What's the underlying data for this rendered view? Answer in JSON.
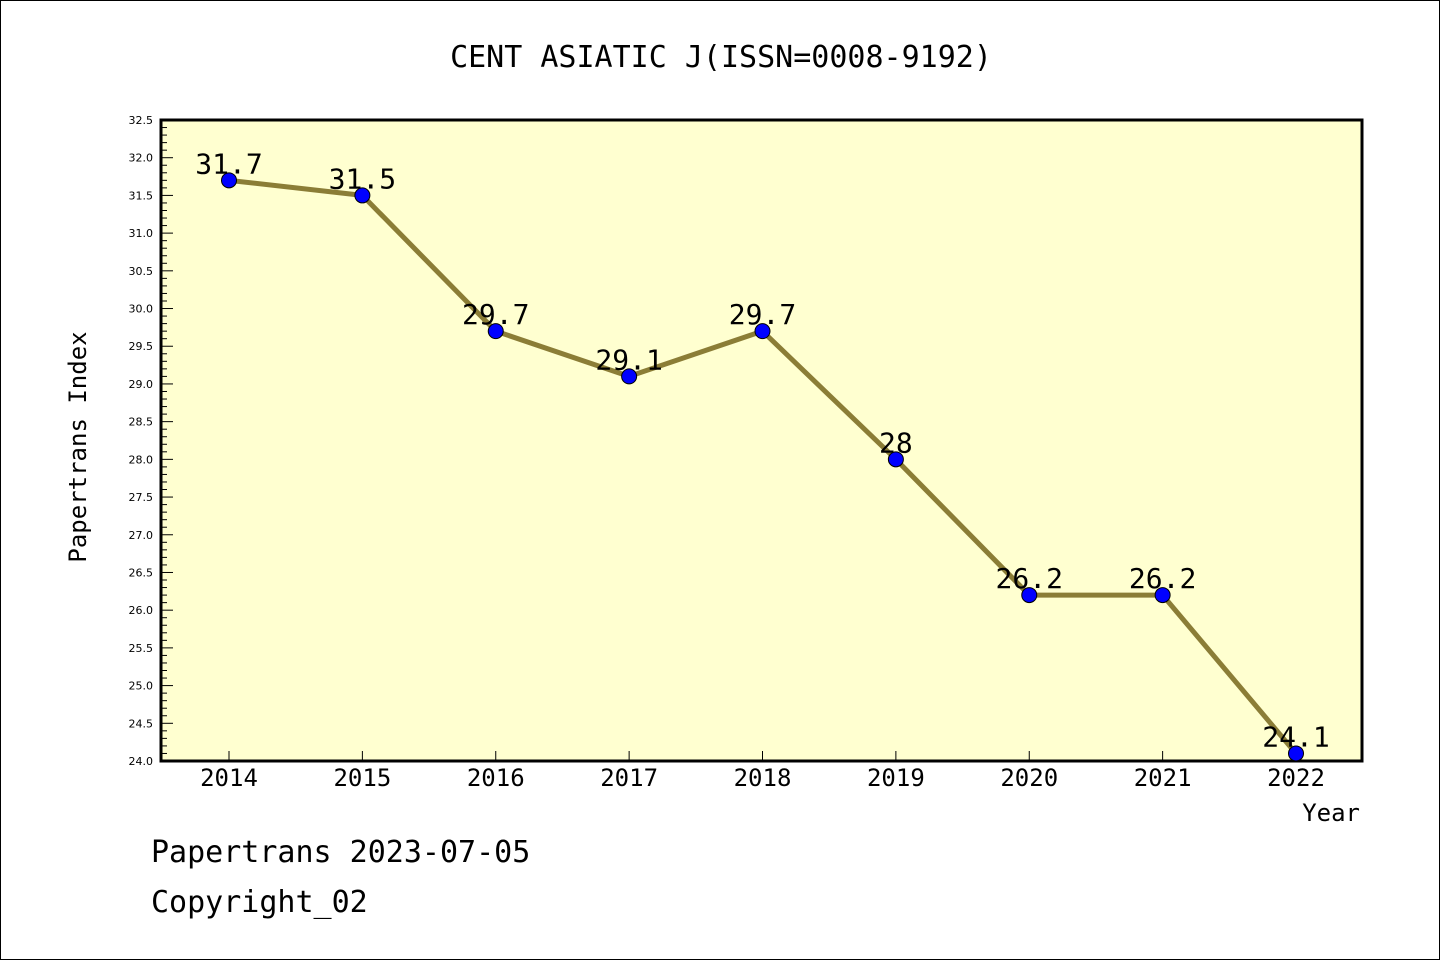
{
  "chart_data": {
    "type": "line",
    "title": "CENT ASIATIC J(ISSN=0008-9192)",
    "xlabel": "Year",
    "ylabel": "Papertrans Index",
    "categories": [
      "2014",
      "2015",
      "2016",
      "2017",
      "2018",
      "2019",
      "2020",
      "2021",
      "2022"
    ],
    "series": [
      {
        "values": [
          31.7,
          31.5,
          29.7,
          29.1,
          29.7,
          28,
          26.2,
          26.2,
          24.1
        ],
        "labels": [
          "31.7",
          "31.5",
          "29.7",
          "29.1",
          "29.7",
          "28",
          "26.2",
          "26.2",
          "24.1"
        ]
      }
    ],
    "ylim": [
      24.0,
      32.5
    ],
    "yticks": [
      "24.0",
      "24.5",
      "25.0",
      "25.5",
      "26.0",
      "26.5",
      "27.0",
      "27.5",
      "28.0",
      "28.5",
      "29.0",
      "29.5",
      "30.0",
      "30.5",
      "31.0",
      "31.5",
      "32.0",
      "32.5"
    ],
    "grid": false,
    "colors": {
      "plot_background": "#ffffd0",
      "line": "#8b7d36",
      "marker": "#0000ff"
    }
  },
  "footer": {
    "line1": "Papertrans 2023-07-05",
    "line2": "Copyright_02"
  }
}
